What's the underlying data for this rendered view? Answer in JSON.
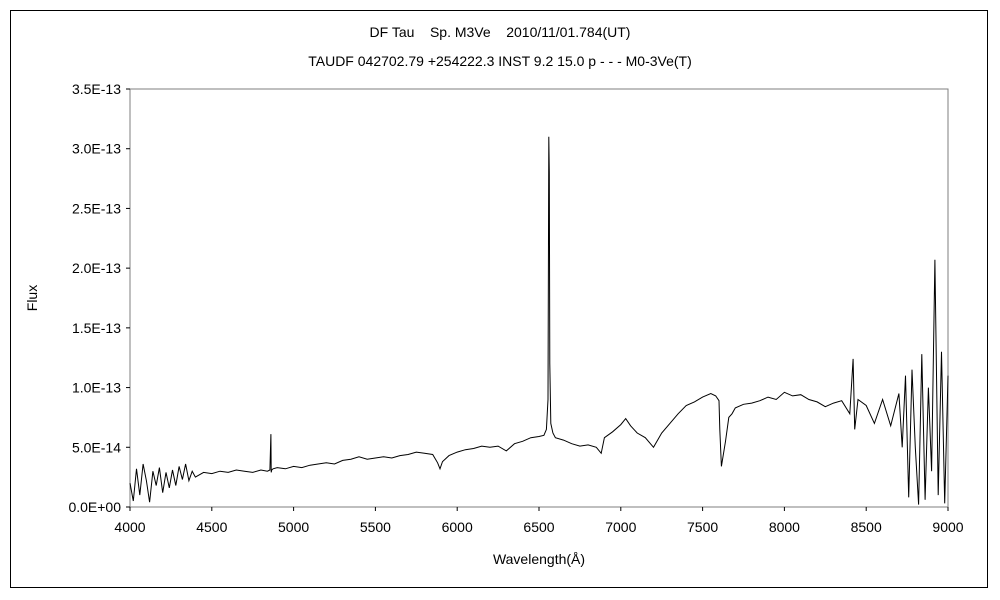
{
  "chart_data": {
    "type": "line",
    "title": "DF Tau    Sp. M3Ve    2010/11/01.784(UT)",
    "subtitle": "TAUDF 042702.79 +254222.3 INST 9.2 15.0 p - - - M0-3Ve(T)",
    "xlabel": "Wavelength(Å)",
    "ylabel": "Flux",
    "xlim": [
      4000,
      9000
    ],
    "ylim": [
      0,
      3.5e-13
    ],
    "x_ticks": [
      4000,
      4500,
      5000,
      5500,
      6000,
      6500,
      7000,
      7500,
      8000,
      8500,
      9000
    ],
    "y_ticks": [
      0,
      5e-14,
      1e-13,
      1.5e-13,
      2e-13,
      2.5e-13,
      3e-13,
      3.5e-13
    ],
    "y_tick_labels": [
      "0.0E+00",
      "5.0E-14",
      "1.0E-13",
      "1.5E-13",
      "2.0E-13",
      "2.5E-13",
      "3.0E-13",
      "3.5E-13"
    ],
    "grid": false,
    "legend": "none",
    "line_color": "#000000",
    "series": [
      {
        "x": [
          4000,
          4020,
          4040,
          4060,
          4080,
          4100,
          4120,
          4140,
          4160,
          4180,
          4200,
          4220,
          4240,
          4260,
          4280,
          4300,
          4320,
          4340,
          4360,
          4380,
          4400,
          4450,
          4500,
          4550,
          4600,
          4650,
          4700,
          4750,
          4800,
          4840,
          4855,
          4861,
          4863,
          4866,
          4875,
          4900,
          4950,
          5000,
          5050,
          5100,
          5150,
          5200,
          5250,
          5300,
          5350,
          5400,
          5450,
          5500,
          5550,
          5600,
          5650,
          5700,
          5750,
          5800,
          5850,
          5880,
          5895,
          5910,
          5950,
          6000,
          6050,
          6100,
          6150,
          6200,
          6250,
          6300,
          6350,
          6400,
          6450,
          6500,
          6530,
          6545,
          6555,
          6560,
          6563,
          6566,
          6572,
          6585,
          6600,
          6650,
          6700,
          6750,
          6800,
          6850,
          6880,
          6900,
          6950,
          7000,
          7030,
          7060,
          7100,
          7150,
          7200,
          7250,
          7300,
          7350,
          7400,
          7450,
          7500,
          7550,
          7580,
          7600,
          7605,
          7615,
          7640,
          7660,
          7680,
          7700,
          7750,
          7800,
          7850,
          7900,
          7950,
          8000,
          8050,
          8100,
          8150,
          8200,
          8250,
          8300,
          8350,
          8400,
          8420,
          8430,
          8450,
          8500,
          8550,
          8600,
          8650,
          8700,
          8720,
          8740,
          8760,
          8780,
          8800,
          8820,
          8840,
          8860,
          8880,
          8900,
          8920,
          8940,
          8960,
          8980,
          9000
        ],
        "values": [
          2e-14,
          5e-15,
          3.2e-14,
          1e-14,
          3.6e-14,
          2.2e-14,
          4e-15,
          3e-14,
          1.8e-14,
          3.3e-14,
          1.2e-14,
          2.9e-14,
          1.6e-14,
          3.1e-14,
          1.8e-14,
          3.4e-14,
          2.3e-14,
          3.6e-14,
          2.2e-14,
          3e-14,
          2.5e-14,
          2.9e-14,
          2.8e-14,
          3e-14,
          2.9e-14,
          3.1e-14,
          3e-14,
          2.9e-14,
          3.1e-14,
          3e-14,
          3.1e-14,
          6.1e-14,
          2.9e-14,
          3.1e-14,
          3.2e-14,
          3.3e-14,
          3.2e-14,
          3.4e-14,
          3.3e-14,
          3.5e-14,
          3.6e-14,
          3.7e-14,
          3.6e-14,
          3.9e-14,
          4e-14,
          4.2e-14,
          4e-14,
          4.1e-14,
          4.2e-14,
          4.1e-14,
          4.3e-14,
          4.4e-14,
          4.6e-14,
          4.5e-14,
          4.4e-14,
          3.7e-14,
          3.2e-14,
          3.8e-14,
          4.3e-14,
          4.6e-14,
          4.8e-14,
          4.9e-14,
          5.1e-14,
          5e-14,
          5.1e-14,
          4.7e-14,
          5.3e-14,
          5.5e-14,
          5.8e-14,
          5.9e-14,
          6e-14,
          6.5e-14,
          9e-14,
          3.1e-13,
          2.8e-13,
          1.2e-13,
          7e-14,
          6.2e-14,
          5.8e-14,
          5.6e-14,
          5.3e-14,
          5.1e-14,
          5.2e-14,
          5e-14,
          4.5e-14,
          5.8e-14,
          6.3e-14,
          6.9e-14,
          7.4e-14,
          6.8e-14,
          6.2e-14,
          5.8e-14,
          5e-14,
          6.2e-14,
          7e-14,
          7.8e-14,
          8.5e-14,
          8.8e-14,
          9.2e-14,
          9.5e-14,
          9.3e-14,
          8.9e-14,
          6.5e-14,
          3.4e-14,
          5.5e-14,
          7.5e-14,
          7.8e-14,
          8.3e-14,
          8.6e-14,
          8.7e-14,
          8.9e-14,
          9.2e-14,
          9e-14,
          9.6e-14,
          9.3e-14,
          9.4e-14,
          9e-14,
          8.8e-14,
          8.4e-14,
          8.7e-14,
          8.9e-14,
          7.8e-14,
          1.24e-13,
          6.5e-14,
          9e-14,
          8.5e-14,
          7e-14,
          9e-14,
          6.8e-14,
          9.5e-14,
          5e-14,
          1.1e-13,
          8e-15,
          1.15e-13,
          5e-14,
          2e-15,
          1.28e-13,
          6e-15,
          1e-13,
          3e-14,
          2.07e-13,
          1e-14,
          1.3e-13,
          3e-15,
          1.1e-13
        ]
      }
    ]
  }
}
